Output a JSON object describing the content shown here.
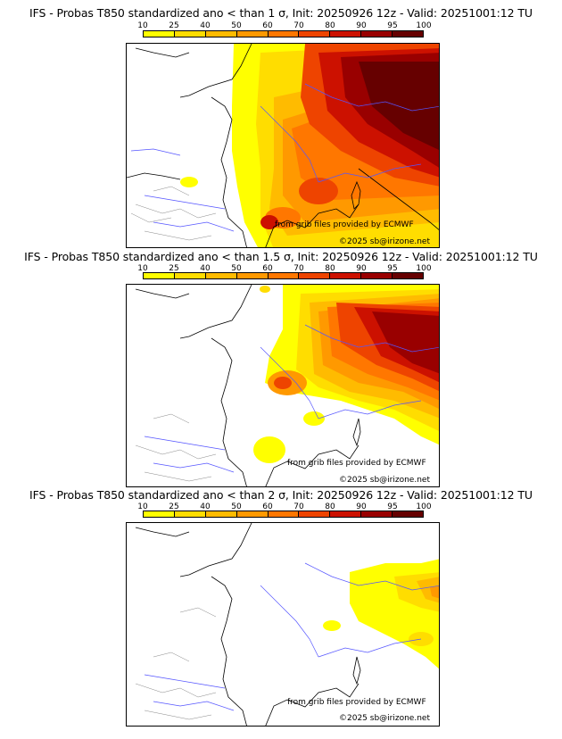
{
  "legend": {
    "ticks": [
      "10",
      "25",
      "40",
      "50",
      "60",
      "70",
      "80",
      "90",
      "95",
      "100"
    ],
    "colors": [
      "#ffff00",
      "#ffdd00",
      "#ffbb00",
      "#ff9900",
      "#ff7700",
      "#ee4400",
      "#cc1100",
      "#990000",
      "#660000"
    ]
  },
  "credits": {
    "source": "from grib files provided by ECMWF",
    "copyright": "©2025 sb@irizone.net"
  },
  "panels": [
    {
      "title": "IFS - Probas T850  standardized ano < than 1 σ, Init: 20250926 12z - Valid: 20251001:12 TU",
      "sigma": "1"
    },
    {
      "title": "IFS - Probas T850  standardized ano < than 1.5 σ, Init: 20250926 12z - Valid: 20251001:12 TU",
      "sigma": "1.5"
    },
    {
      "title": "IFS - Probas T850  standardized ano < than 2 σ, Init: 20250926 12z - Valid: 20251001:12 TU",
      "sigma": "2"
    }
  ]
}
